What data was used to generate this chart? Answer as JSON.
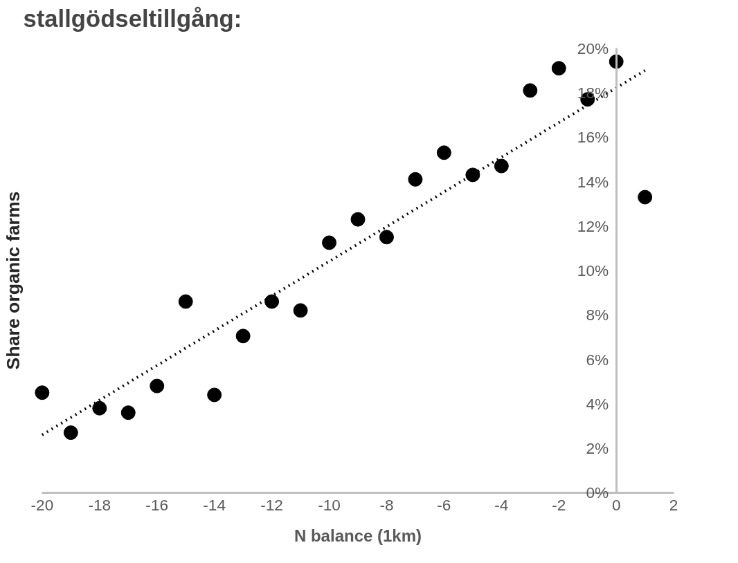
{
  "chart_data": {
    "type": "scatter",
    "title": "stallgödseltillgång:",
    "xlabel": "N balance (1km)",
    "ylabel": "Share organic farms",
    "x": [
      -20,
      -19,
      -18,
      -17,
      -16,
      -15,
      -14,
      -13,
      -12,
      -11,
      -10,
      -9,
      -8,
      -7,
      -6,
      -5,
      -4,
      -3,
      -2,
      -1,
      0,
      1
    ],
    "series": [
      {
        "color": "#000000",
        "marker": "circle",
        "values": [
          4.5,
          2.7,
          3.8,
          3.6,
          4.8,
          8.6,
          4.4,
          7.05,
          8.6,
          8.2,
          11.25,
          12.3,
          11.5,
          14.1,
          15.3,
          14.3,
          14.7,
          18.1,
          19.1,
          17.7,
          19.4,
          13.3
        ]
      },
      {
        "type": "line",
        "color": "#000000",
        "line_style": "dotted",
        "x": [
          -20,
          1
        ],
        "values": [
          2.6,
          19.0
        ]
      }
    ],
    "xlim": [
      -20,
      2
    ],
    "xticks": [
      -20,
      -18,
      -16,
      -14,
      -12,
      -10,
      -8,
      -6,
      -4,
      -2,
      0,
      2
    ],
    "ylim": [
      0,
      20
    ],
    "yticks": [
      {
        "value": 0,
        "label": "0%"
      },
      {
        "value": 2,
        "label": "2%"
      },
      {
        "value": 4,
        "label": "4%"
      },
      {
        "value": 6,
        "label": "6%"
      },
      {
        "value": 8,
        "label": "8%"
      },
      {
        "value": 10,
        "label": "10%"
      },
      {
        "value": 12,
        "label": "12%"
      },
      {
        "value": 14,
        "label": "14%"
      },
      {
        "value": 16,
        "label": "16%"
      },
      {
        "value": 18,
        "label": "18%"
      },
      {
        "value": 20,
        "label": "20%"
      }
    ]
  }
}
